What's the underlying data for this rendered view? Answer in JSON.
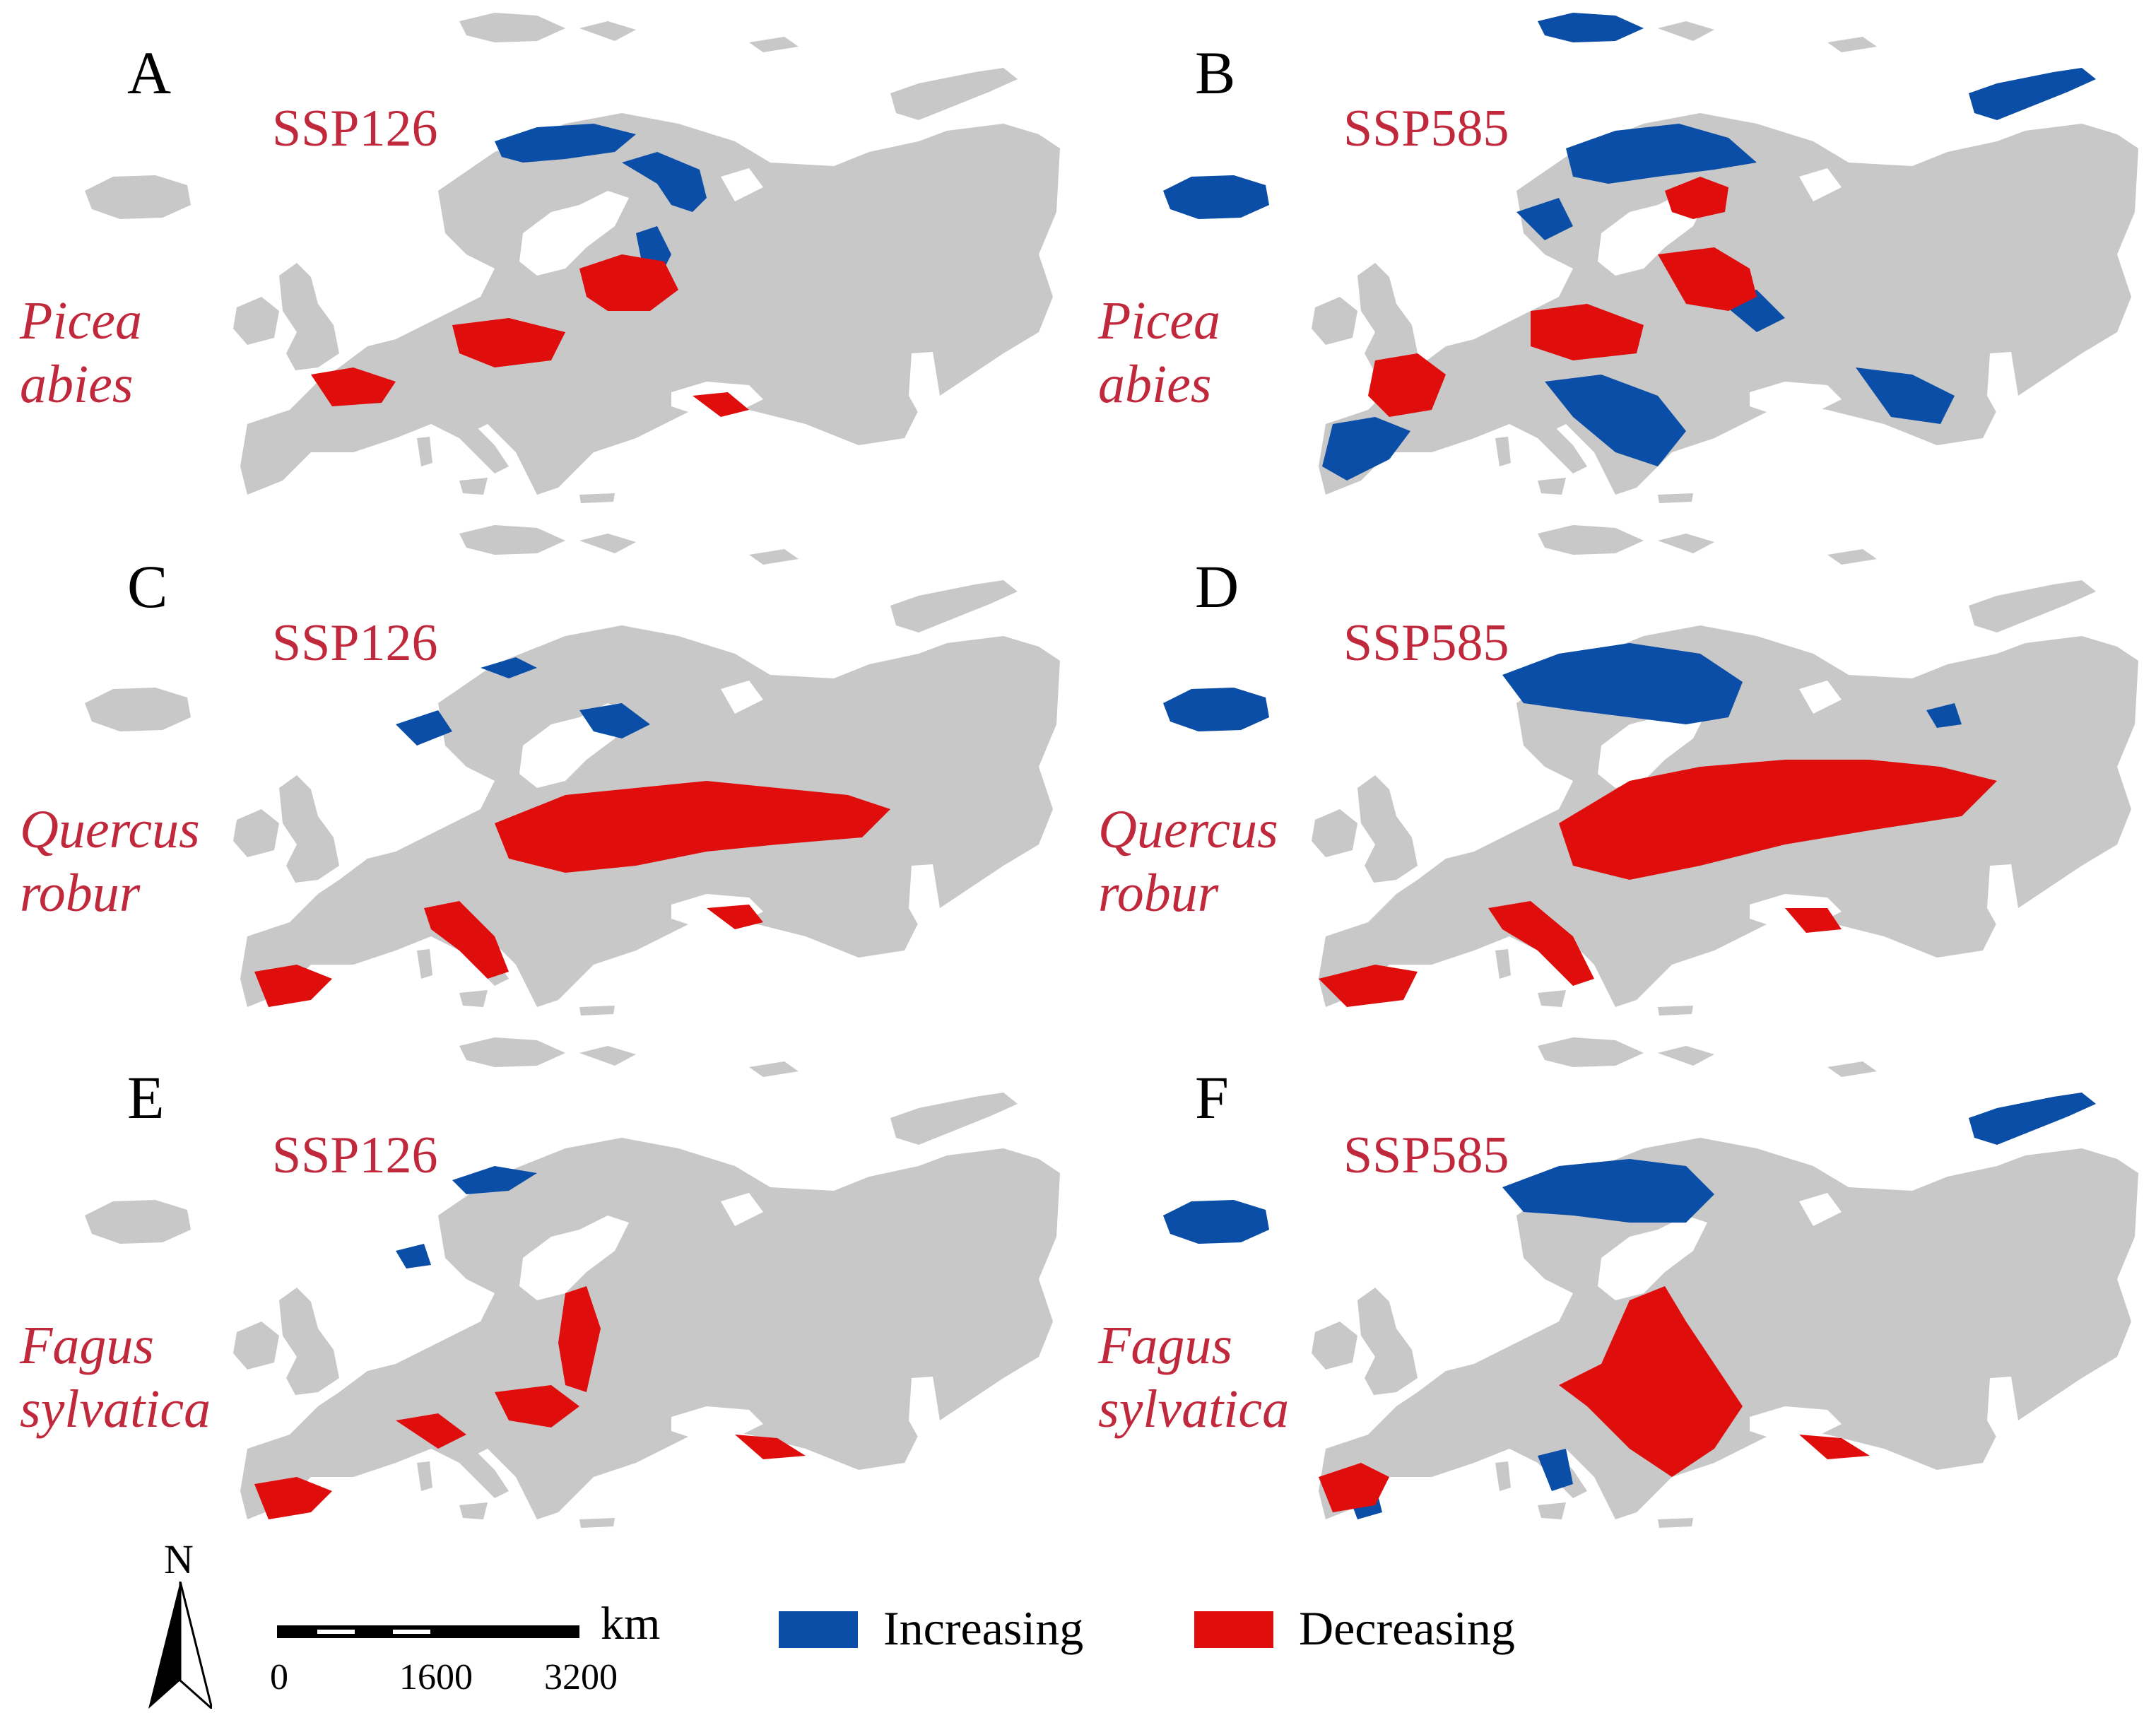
{
  "colors": {
    "land": "#c8c8c8",
    "increasing": "#0a4ea8",
    "decreasing": "#e00d0d",
    "label": "#c0283c"
  },
  "panels": [
    {
      "id": "A",
      "scenario": "SSP126",
      "species_line1": "Picea",
      "species_line2": "abies"
    },
    {
      "id": "B",
      "scenario": "SSP585",
      "species_line1": "Picea",
      "species_line2": "abies"
    },
    {
      "id": "C",
      "scenario": "SSP126",
      "species_line1": "Quercus",
      "species_line2": "robur"
    },
    {
      "id": "D",
      "scenario": "SSP585",
      "species_line1": "Quercus",
      "species_line2": "robur"
    },
    {
      "id": "E",
      "scenario": "SSP126",
      "species_line1": "Fagus",
      "species_line2": "sylvatica"
    },
    {
      "id": "F",
      "scenario": "SSP585",
      "species_line1": "Fagus",
      "species_line2": "sylvatica"
    }
  ],
  "legend": {
    "north_label": "N",
    "north_icon": "north-arrow-icon",
    "scale_unit": "km",
    "scale_ticks": [
      "0",
      "1600",
      "3200"
    ],
    "items": [
      {
        "label": "Increasing",
        "color": "#0a4ea8"
      },
      {
        "label": "Decreasing",
        "color": "#e00d0d"
      }
    ]
  }
}
